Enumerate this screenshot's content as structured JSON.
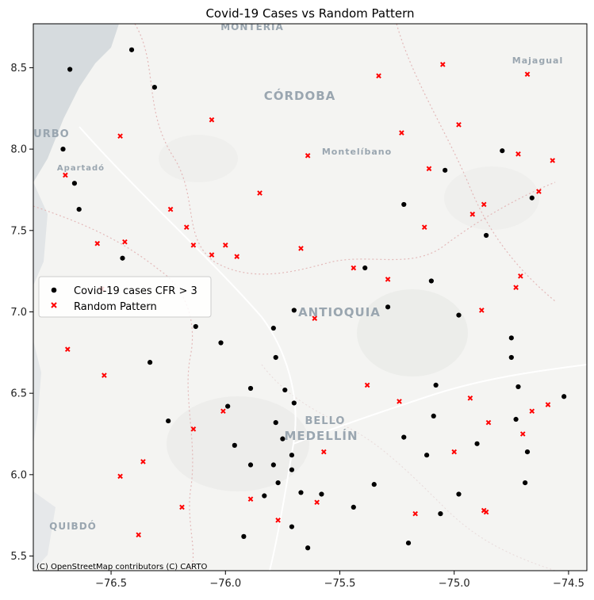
{
  "chart_data": {
    "type": "scatter",
    "title": "Covid-19 Cases vs Random Pattern",
    "xlabel": "",
    "ylabel": "",
    "xlim": [
      -76.84,
      -74.42
    ],
    "ylim": [
      5.41,
      8.77
    ],
    "xticks": [
      -76.5,
      -76.0,
      -75.5,
      -75.0,
      -74.5
    ],
    "xtick_labels": [
      "−76.5",
      "−76.0",
      "−75.5",
      "−75.0",
      "−74.5"
    ],
    "yticks": [
      5.5,
      6.0,
      6.5,
      7.0,
      7.5,
      8.0,
      8.5
    ],
    "ytick_labels": [
      "5.5",
      "6.0",
      "6.5",
      "7.0",
      "7.5",
      "8.0",
      "8.5"
    ],
    "legend_position": "center-left",
    "attribution": "(C) OpenStreetMap contributors (C) CARTO",
    "basemap_labels": [
      "MONTERÍA",
      "CÓRDOBA",
      "Majagual",
      "TURBO",
      "Montelíbano",
      "Apartadó",
      "ANTIOQUIA",
      "BELLO",
      "MEDELLÍN",
      "QUIBDÓ"
    ],
    "series": [
      {
        "name": "Covid-19 cases CFR > 3",
        "marker": "circle",
        "color": "#000000",
        "x": [
          -76.68,
          -76.41,
          -76.31,
          -76.71,
          -76.66,
          -76.64,
          -76.45,
          -75.04,
          -75.22,
          -74.79,
          -74.66,
          -74.86,
          -75.39,
          -75.1,
          -75.29,
          -74.98,
          -75.7,
          -76.13,
          -76.02,
          -75.79,
          -74.75,
          -75.78,
          -74.75,
          -76.33,
          -75.74,
          -75.89,
          -75.08,
          -74.72,
          -75.7,
          -75.99,
          -76.25,
          -75.09,
          -75.78,
          -74.73,
          -74.52,
          -75.75,
          -75.22,
          -74.9,
          -75.96,
          -74.68,
          -75.71,
          -75.12,
          -75.89,
          -75.79,
          -75.71,
          -75.77,
          -75.35,
          -74.69,
          -75.67,
          -75.83,
          -75.58,
          -74.98,
          -75.44,
          -75.06,
          -75.71,
          -75.92,
          -75.2,
          -75.64
        ],
        "y": [
          8.49,
          8.61,
          8.38,
          8.0,
          7.79,
          7.63,
          7.33,
          7.87,
          7.66,
          7.99,
          7.7,
          7.47,
          7.27,
          7.19,
          7.03,
          6.98,
          7.01,
          6.91,
          6.81,
          6.9,
          6.84,
          6.72,
          6.72,
          6.69,
          6.52,
          6.53,
          6.55,
          6.54,
          6.44,
          6.42,
          6.33,
          6.36,
          6.32,
          6.34,
          6.48,
          6.22,
          6.23,
          6.19,
          6.18,
          6.14,
          6.12,
          6.12,
          6.06,
          6.06,
          6.03,
          5.95,
          5.94,
          5.95,
          5.89,
          5.87,
          5.88,
          5.88,
          5.8,
          5.76,
          5.68,
          5.62,
          5.58,
          5.55
        ]
      },
      {
        "name": "Random Pattern",
        "marker": "x",
        "color": "#ff0000",
        "x": [
          -75.33,
          -75.05,
          -74.68,
          -76.06,
          -75.23,
          -74.98,
          -76.46,
          -75.64,
          -74.72,
          -74.57,
          -76.7,
          -75.11,
          -74.63,
          -75.85,
          -74.87,
          -76.24,
          -74.92,
          -75.13,
          -76.17,
          -76.56,
          -76.44,
          -76.14,
          -76.0,
          -75.67,
          -76.06,
          -75.95,
          -75.44,
          -75.29,
          -74.71,
          -74.73,
          -76.54,
          -74.88,
          -75.61,
          -76.69,
          -75.38,
          -76.53,
          -75.24,
          -74.93,
          -74.59,
          -74.66,
          -76.01,
          -74.85,
          -76.14,
          -74.7,
          -75.57,
          -75.0,
          -76.36,
          -76.46,
          -75.89,
          -75.6,
          -76.19,
          -75.17,
          -74.87,
          -74.86,
          -75.77,
          -76.38
        ],
        "y": [
          8.45,
          8.52,
          8.46,
          8.18,
          8.1,
          8.15,
          8.08,
          7.96,
          7.97,
          7.93,
          7.84,
          7.88,
          7.74,
          7.73,
          7.66,
          7.63,
          7.6,
          7.52,
          7.52,
          7.42,
          7.43,
          7.41,
          7.41,
          7.39,
          7.35,
          7.34,
          7.27,
          7.2,
          7.22,
          7.15,
          7.14,
          7.01,
          6.96,
          6.77,
          6.55,
          6.61,
          6.45,
          6.47,
          6.43,
          6.39,
          6.39,
          6.32,
          6.28,
          6.25,
          6.14,
          6.14,
          6.08,
          5.99,
          5.85,
          5.83,
          5.8,
          5.76,
          5.78,
          5.77,
          5.72,
          5.63
        ]
      }
    ]
  }
}
